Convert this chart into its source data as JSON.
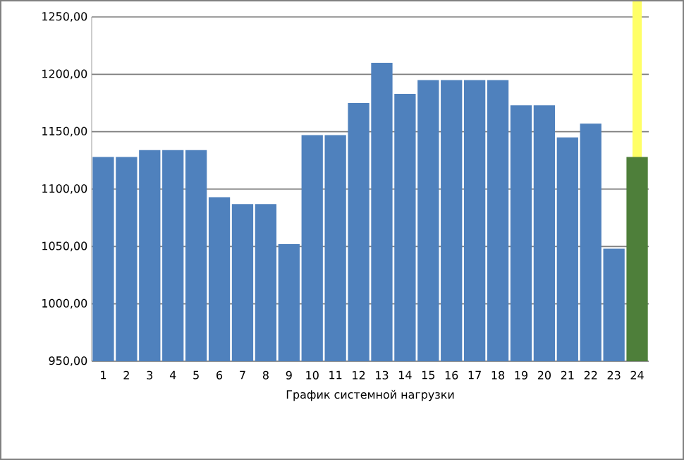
{
  "chart_data": {
    "type": "bar",
    "xlabel": "График системной нагрузки",
    "categories": [
      "1",
      "2",
      "3",
      "4",
      "5",
      "6",
      "7",
      "8",
      "9",
      "10",
      "11",
      "12",
      "13",
      "14",
      "15",
      "16",
      "17",
      "18",
      "19",
      "20",
      "21",
      "22",
      "23",
      "24"
    ],
    "values": [
      1128,
      1128,
      1134,
      1134,
      1134,
      1093,
      1087,
      1087,
      1052,
      1147,
      1147,
      1175,
      1210,
      1183,
      1195,
      1195,
      1195,
      1195,
      1173,
      1173,
      1145,
      1157,
      1048,
      1128
    ],
    "colors": [
      "#4f81bd",
      "#4f81bd",
      "#4f81bd",
      "#4f81bd",
      "#4f81bd",
      "#4f81bd",
      "#4f81bd",
      "#4f81bd",
      "#4f81bd",
      "#4f81bd",
      "#4f81bd",
      "#4f81bd",
      "#4f81bd",
      "#4f81bd",
      "#4f81bd",
      "#4f81bd",
      "#4f81bd",
      "#4f81bd",
      "#4f81bd",
      "#4f81bd",
      "#4f81bd",
      "#4f81bd",
      "#4f81bd",
      "#4e7f3a"
    ],
    "ylim": [
      950,
      1250
    ],
    "yticks": [
      {
        "value": 950,
        "label": "950,00"
      },
      {
        "value": 1000,
        "label": "1000,00"
      },
      {
        "value": 1050,
        "label": "1050,00"
      },
      {
        "value": 1100,
        "label": "1100,00"
      },
      {
        "value": 1150,
        "label": "1150,00"
      },
      {
        "value": 1200,
        "label": "1200,00"
      },
      {
        "value": 1250,
        "label": "1250,00"
      }
    ],
    "grid": "y",
    "bands": [
      {
        "axis": "x",
        "from": "24",
        "to": "24",
        "color": "#ffff66"
      }
    ]
  }
}
